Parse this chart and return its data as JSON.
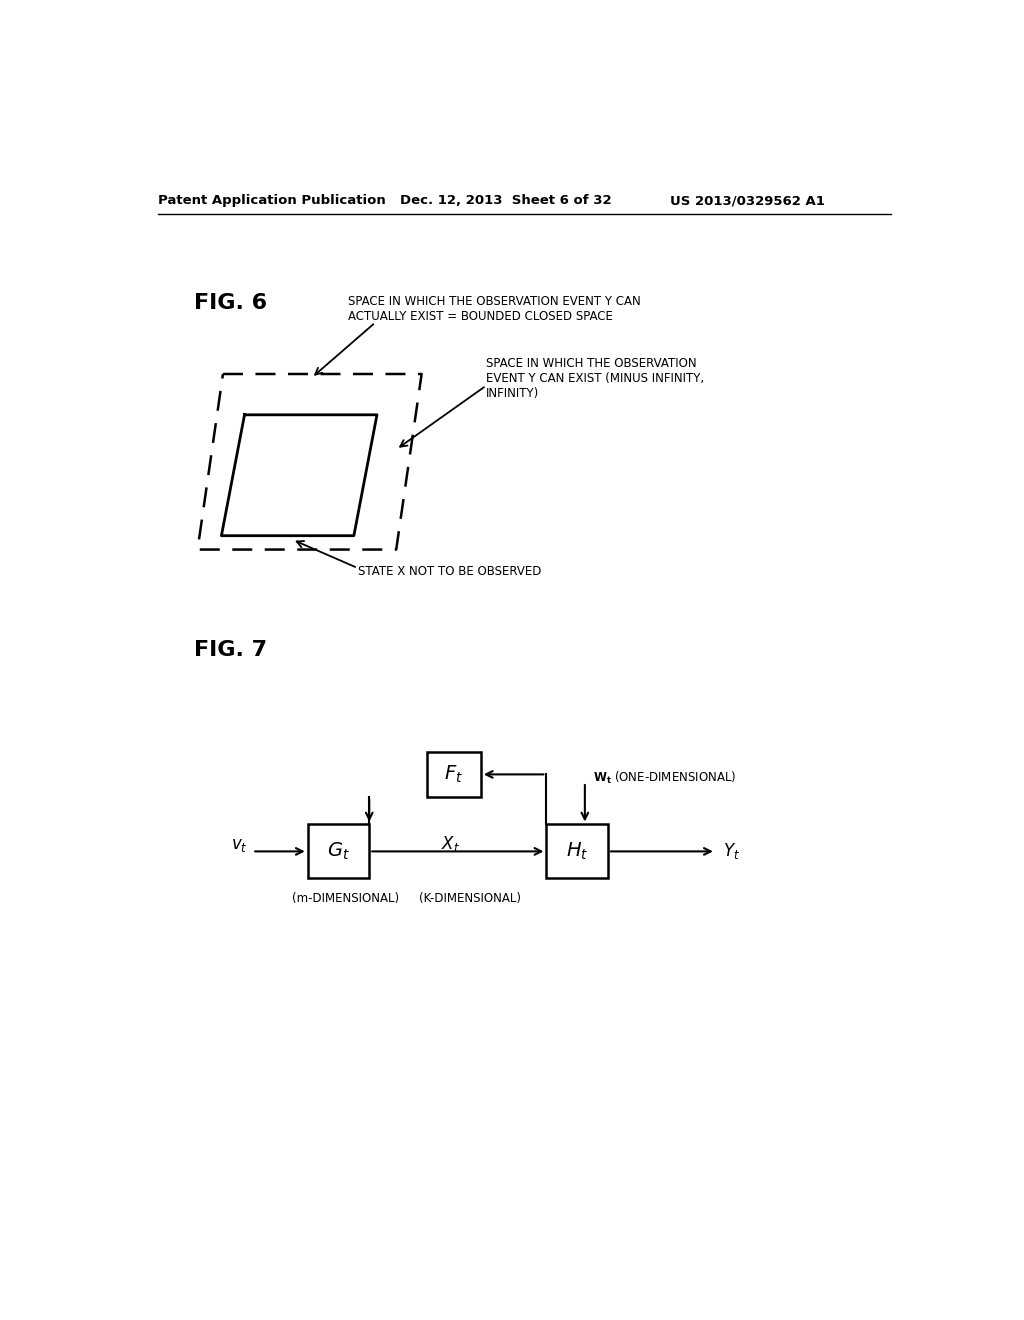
{
  "bg_color": "#ffffff",
  "annotation1_text": "SPACE IN WHICH THE OBSERVATION EVENT Y CAN\nACTUALLY EXIST = BOUNDED CLOSED SPACE",
  "annotation2_text": "SPACE IN WHICH THE OBSERVATION\nEVENT Y CAN EXIST (MINUS INFINITY,\nINFINITY)",
  "annotation3_text": "STATE X NOT TO BE OBSERVED",
  "dim_m": "(m-DIMENSIONAL)",
  "dim_k": "(K-DIMENSIONAL)",
  "wt_text": "W",
  "wt_sub": "t",
  "wt_rest": " (ONE-DIMENSIONAL)"
}
